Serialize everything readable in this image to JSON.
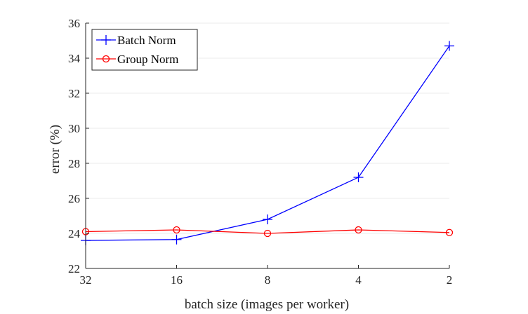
{
  "chart_data": {
    "type": "line",
    "title": "",
    "xlabel": "batch size (images per worker)",
    "ylabel": "error (%)",
    "categories": [
      "32",
      "16",
      "8",
      "4",
      "2"
    ],
    "ylim": [
      22,
      36
    ],
    "yticks": [
      22,
      24,
      26,
      28,
      30,
      32,
      34,
      36
    ],
    "grid": "horizontal",
    "legend_position": "top-left",
    "series": [
      {
        "name": "Batch Norm",
        "color": "#0000ff",
        "marker": "plus",
        "values": [
          23.6,
          23.65,
          24.8,
          27.2,
          34.7
        ]
      },
      {
        "name": "Group Norm",
        "color": "#ff0000",
        "marker": "circle",
        "values": [
          24.1,
          24.2,
          24.0,
          24.2,
          24.05
        ]
      }
    ]
  }
}
